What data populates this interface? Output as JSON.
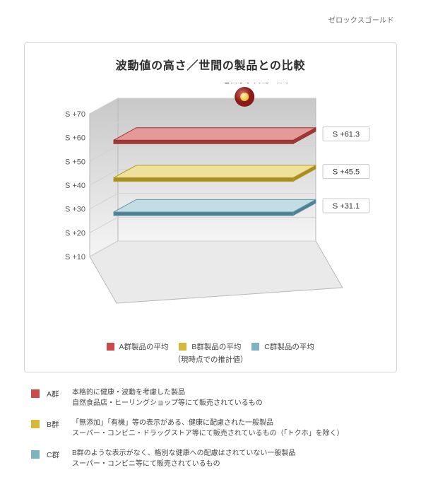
{
  "brand": "ゼロックスゴールド",
  "title": "波動値の高さ／世間の製品との比較",
  "marker_label": "ゼロックスゴールド",
  "chart": {
    "type": "3d-layered-planes",
    "background_color": "#ffffff",
    "wall_gradient_top": "#c8c8c8",
    "wall_gradient_bottom": "#f5f5f5",
    "floor_color": "#eaeaea",
    "grid_color": "#d2d2d2",
    "axis_color": "#b8b8b8",
    "ylabel_prefix": "S +",
    "ytick_values": [
      10,
      20,
      30,
      40,
      50,
      60,
      70
    ],
    "ytick_color": "#555555",
    "ytick_fontsize": 11,
    "planes": [
      {
        "key": "A",
        "value": 61.3,
        "value_label": "S  +61.3",
        "fill": "#c94b4b",
        "fill_light": "#e59a9a",
        "edge": "#a03030",
        "depth_shade": "#9a3a3a"
      },
      {
        "key": "B",
        "value": 45.5,
        "value_label": "S  +45.5",
        "fill": "#d6b93b",
        "fill_light": "#efe19c",
        "edge": "#b59a20",
        "depth_shade": "#a88e20"
      },
      {
        "key": "C",
        "value": 31.1,
        "value_label": "S  +31.1",
        "fill": "#7eb3c4",
        "fill_light": "#c3dde5",
        "edge": "#5e96a8",
        "depth_shade": "#4e808f"
      }
    ],
    "marker": {
      "outer_color": "#8a1a1a",
      "glow_color": "#d86a6a",
      "inner_color": "#e8c040",
      "inner_highlight": "#fff4b0"
    }
  },
  "legend_items": [
    {
      "label": "A群製品の平均",
      "swatch": "#c94b4b"
    },
    {
      "label": "B群製品の平均",
      "swatch": "#d6b93b"
    },
    {
      "label": "C群製品の平均",
      "swatch": "#7eb3c4"
    }
  ],
  "legend_note": "（現時点での推計値）",
  "definitions": [
    {
      "swatch": "#c94b4b",
      "label": "A群",
      "line1": "本格的に健康・波動を考慮した製品",
      "line2": "自然食品店・ヒーリングショップ等にて販売されているもの"
    },
    {
      "swatch": "#d6b93b",
      "label": "B群",
      "line1": "「無添加」「有機」等の表示がある、健康に配慮された一般製品",
      "line2": "スーパー・コンビニ・ドラッグストア等にて販売されているもの（「トクホ」を除く）"
    },
    {
      "swatch": "#7eb3c4",
      "label": "C群",
      "line1": "B群のような表示がなく、格別な健康への配慮はされていない一般製品",
      "line2": "スーパー・コンビニ等にて販売されているもの"
    }
  ]
}
